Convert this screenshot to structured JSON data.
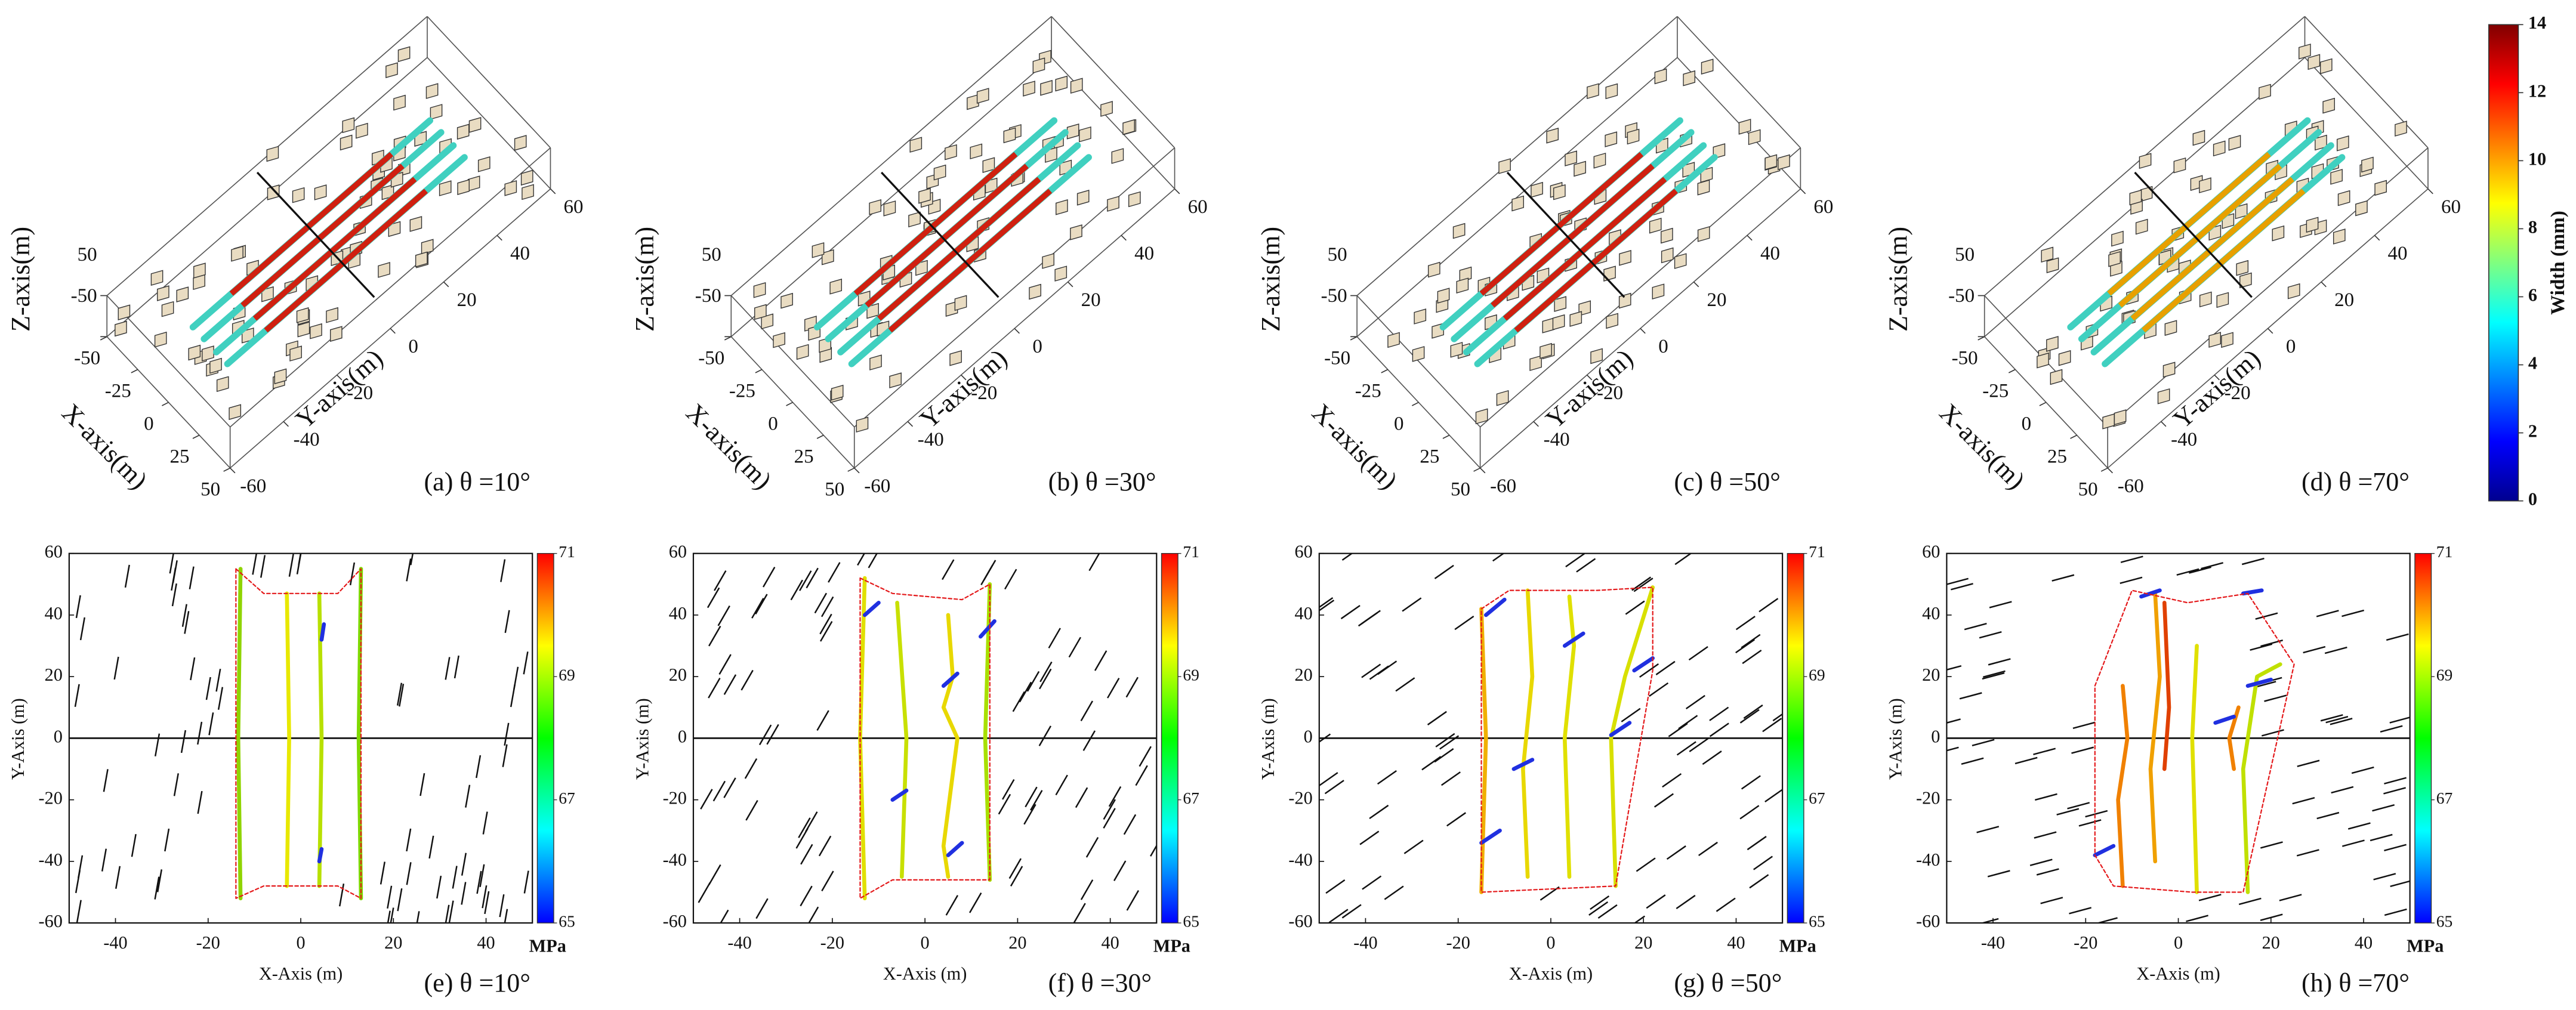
{
  "chart_data": [
    {
      "type": "3d",
      "title": "(a) θ =10°",
      "xlabel": "X-axis(m)",
      "ylabel": "Y-axis(m)",
      "zlabel": "Z-axis(m)",
      "xlim": [
        -50,
        50
      ],
      "ylim": [
        -60,
        60
      ],
      "zlim": [
        -50,
        50
      ],
      "xticks": [
        -50,
        -25,
        0,
        25,
        50
      ],
      "yticks": [
        -60,
        -40,
        -20,
        0,
        20,
        40,
        60
      ],
      "zticks": [
        -50,
        50
      ]
    },
    {
      "type": "3d",
      "title": "(b) θ =30°",
      "xlabel": "X-axis(m)",
      "ylabel": "Y-axis(m)",
      "zlabel": "Z-axis(m)",
      "xlim": [
        -50,
        50
      ],
      "ylim": [
        -60,
        60
      ],
      "zlim": [
        -50,
        50
      ],
      "xticks": [
        -50,
        -25,
        0,
        25,
        50
      ],
      "yticks": [
        -60,
        -40,
        -20,
        0,
        20,
        40,
        60
      ],
      "zticks": [
        -50,
        50
      ]
    },
    {
      "type": "3d",
      "title": "(c) θ =50°",
      "xlabel": "X-axis(m)",
      "ylabel": "Y-axis(m)",
      "zlabel": "Z-axis(m)",
      "xlim": [
        -50,
        50
      ],
      "ylim": [
        -60,
        60
      ],
      "zlim": [
        -50,
        50
      ],
      "xticks": [
        -50,
        -25,
        0,
        25,
        50
      ],
      "yticks": [
        -60,
        -40,
        -20,
        0,
        20,
        40,
        60
      ],
      "zticks": [
        -50,
        50
      ]
    },
    {
      "type": "3d",
      "title": "(d) θ =70°",
      "xlabel": "X-axis(m)",
      "ylabel": "Y-axis(m)",
      "zlabel": "Z-axis(m)",
      "xlim": [
        -50,
        50
      ],
      "ylim": [
        -60,
        60
      ],
      "zlim": [
        -50,
        50
      ],
      "xticks": [
        -50,
        -25,
        0,
        25,
        50
      ],
      "yticks": [
        -60,
        -40,
        -20,
        0,
        20,
        40,
        60
      ],
      "zticks": [
        -50,
        50
      ]
    },
    {
      "type": "line",
      "title": "(e) θ =10°",
      "xlabel": "X-Axis (m)",
      "ylabel": "Y-Axis (m)",
      "xlim": [
        -50,
        50
      ],
      "ylim": [
        -60,
        60
      ],
      "xticks": [
        -40,
        -20,
        0,
        20,
        40
      ],
      "yticks": [
        -60,
        -40,
        -20,
        0,
        20,
        40,
        60
      ],
      "colorbar": {
        "label": "MPa",
        "lim": [
          65,
          71
        ],
        "ticks": [
          65,
          67,
          69,
          71
        ]
      },
      "series": [
        {
          "color": "#8fd400",
          "x": [
            -13,
            -13.5,
            -13
          ],
          "values": [
            -52,
            0,
            55
          ]
        },
        {
          "color": "#e8e800",
          "x": [
            -3,
            -2.5,
            -3
          ],
          "values": [
            -48,
            0,
            47
          ]
        },
        {
          "color": "#b8e000",
          "x": [
            4,
            4.5,
            4
          ],
          "values": [
            -48,
            0,
            47
          ]
        },
        {
          "color": "#2030e0",
          "x": [
            4.5,
            5
          ],
          "values": [
            32,
            37
          ]
        },
        {
          "color": "#2030e0",
          "x": [
            4,
            4.5
          ],
          "values": [
            -40,
            -36
          ]
        },
        {
          "color": "#7fd800",
          "x": [
            13,
            12.5,
            13
          ],
          "values": [
            -52,
            0,
            55
          ]
        },
        {
          "color": "#e41a1c",
          "dash": true,
          "x": [
            -14,
            -8,
            8,
            13,
            13,
            8,
            -8,
            -14,
            -14
          ],
          "values": [
            55,
            47,
            47,
            55,
            -52,
            -48,
            -48,
            -52,
            55
          ]
        }
      ]
    },
    {
      "type": "line",
      "title": "(f) θ =30°",
      "xlabel": "X-Axis (m)",
      "ylabel": "Y-Axis (m)",
      "xlim": [
        -50,
        50
      ],
      "ylim": [
        -60,
        60
      ],
      "xticks": [
        -40,
        -20,
        0,
        20,
        40
      ],
      "yticks": [
        -60,
        -40,
        -20,
        0,
        20,
        40,
        60
      ],
      "colorbar": {
        "label": "MPa",
        "lim": [
          65,
          71
        ],
        "ticks": [
          65,
          67,
          69,
          71
        ]
      },
      "series": [
        {
          "color": "#e0e000",
          "x": [
            -13,
            -14,
            -13
          ],
          "values": [
            -52,
            0,
            52
          ]
        },
        {
          "color": "#2030e0",
          "x": [
            -13,
            -10
          ],
          "values": [
            40,
            44
          ]
        },
        {
          "color": "#c8e000",
          "x": [
            -5,
            -4,
            -6
          ],
          "values": [
            -45,
            0,
            44
          ]
        },
        {
          "color": "#2030e0",
          "x": [
            -7,
            -4
          ],
          "values": [
            -20,
            -17
          ]
        },
        {
          "color": "#e8d800",
          "x": [
            5,
            4,
            7,
            4,
            6,
            5
          ],
          "values": [
            -45,
            -35,
            0,
            10,
            20,
            40
          ]
        },
        {
          "color": "#2030e0",
          "x": [
            4,
            7
          ],
          "values": [
            17,
            21
          ]
        },
        {
          "color": "#2030e0",
          "x": [
            5,
            8
          ],
          "values": [
            -38,
            -34
          ]
        },
        {
          "color": "#a8e000",
          "x": [
            14,
            13,
            14
          ],
          "values": [
            -46,
            0,
            50
          ]
        },
        {
          "color": "#2030e0",
          "x": [
            12,
            15
          ],
          "values": [
            33,
            38
          ]
        },
        {
          "color": "#e41a1c",
          "dash": true,
          "x": [
            -14,
            -7,
            8,
            14,
            14,
            8,
            -7,
            -14,
            -14
          ],
          "values": [
            52,
            47,
            45,
            50,
            -46,
            -46,
            -46,
            -52,
            52
          ]
        }
      ]
    },
    {
      "type": "line",
      "title": "(g) θ =50°",
      "xlabel": "X-Axis (m)",
      "ylabel": "Y-Axis (m)",
      "xlim": [
        -50,
        50
      ],
      "ylim": [
        -60,
        60
      ],
      "xticks": [
        -40,
        -20,
        0,
        20,
        40
      ],
      "yticks": [
        -60,
        -40,
        -20,
        0,
        20,
        40,
        60
      ],
      "colorbar": {
        "label": "MPa",
        "lim": [
          65,
          71
        ],
        "ticks": [
          65,
          67,
          69,
          71
        ]
      },
      "series": [
        {
          "color": "#f0b000",
          "x": [
            -15,
            -14,
            -15
          ],
          "values": [
            -50,
            0,
            42
          ]
        },
        {
          "color": "#2030e0",
          "x": [
            -15,
            -11
          ],
          "values": [
            -34,
            -30
          ]
        },
        {
          "color": "#2030e0",
          "x": [
            -14,
            -10
          ],
          "values": [
            40,
            45
          ]
        },
        {
          "color": "#e8d800",
          "x": [
            -5,
            -6,
            -4,
            -5
          ],
          "values": [
            -45,
            -10,
            20,
            48
          ]
        },
        {
          "color": "#2030e0",
          "x": [
            -8,
            -4
          ],
          "values": [
            -10,
            -7
          ]
        },
        {
          "color": "#e0e000",
          "x": [
            4,
            3,
            5,
            4
          ],
          "values": [
            -45,
            0,
            30,
            46
          ]
        },
        {
          "color": "#2030e0",
          "x": [
            3,
            7
          ],
          "values": [
            30,
            34
          ]
        },
        {
          "color": "#d8e000",
          "x": [
            14,
            13,
            16,
            22
          ],
          "values": [
            -48,
            0,
            20,
            49
          ]
        },
        {
          "color": "#2030e0",
          "x": [
            13,
            17
          ],
          "values": [
            1,
            5
          ]
        },
        {
          "color": "#2030e0",
          "x": [
            18,
            22
          ],
          "values": [
            22,
            26
          ]
        },
        {
          "color": "#e41a1c",
          "dash": true,
          "x": [
            -15,
            -9,
            10,
            22,
            22,
            14,
            -15,
            -15
          ],
          "values": [
            42,
            48,
            48,
            49,
            22,
            -48,
            -50,
            42
          ]
        }
      ]
    },
    {
      "type": "line",
      "title": "(h) θ =70°",
      "xlabel": "X-Axis (m)",
      "ylabel": "Y-Axis (m)",
      "xlim": [
        -50,
        50
      ],
      "ylim": [
        -60,
        60
      ],
      "xticks": [
        -40,
        -20,
        0,
        20,
        40
      ],
      "yticks": [
        -60,
        -40,
        -20,
        0,
        20,
        40,
        60
      ],
      "colorbar": {
        "label": "MPa",
        "lim": [
          65,
          71
        ],
        "ticks": [
          65,
          67,
          69,
          71
        ]
      },
      "series": [
        {
          "color": "#f08000",
          "x": [
            -12,
            -13,
            -11,
            -12
          ],
          "values": [
            -48,
            -20,
            0,
            17
          ]
        },
        {
          "color": "#f0a000",
          "x": [
            -5,
            -6,
            -4,
            -5
          ],
          "values": [
            -40,
            -10,
            20,
            47
          ]
        },
        {
          "color": "#e04000",
          "x": [
            -3,
            -2,
            -3
          ],
          "values": [
            -10,
            10,
            44
          ]
        },
        {
          "color": "#f08000",
          "x": [
            12,
            11,
            13
          ],
          "values": [
            -10,
            0,
            10
          ]
        },
        {
          "color": "#e0e000",
          "x": [
            4,
            3,
            4
          ],
          "values": [
            -50,
            0,
            30
          ]
        },
        {
          "color": "#c0e000",
          "x": [
            15,
            14,
            17,
            22
          ],
          "values": [
            -50,
            -10,
            20,
            24
          ]
        },
        {
          "color": "#2030e0",
          "x": [
            -18,
            -14
          ],
          "values": [
            -38,
            -35
          ]
        },
        {
          "color": "#2030e0",
          "x": [
            -8,
            -4
          ],
          "values": [
            46,
            48
          ]
        },
        {
          "color": "#2030e0",
          "x": [
            14,
            18
          ],
          "values": [
            47,
            48
          ]
        },
        {
          "color": "#2030e0",
          "x": [
            8,
            12
          ],
          "values": [
            5,
            7
          ]
        },
        {
          "color": "#2030e0",
          "x": [
            15,
            20
          ],
          "values": [
            17,
            19
          ]
        },
        {
          "color": "#e41a1c",
          "dash": true,
          "x": [
            -18,
            -10,
            2,
            15,
            25,
            14,
            3,
            -14,
            -18,
            -18
          ],
          "values": [
            17,
            48,
            44,
            47,
            24,
            -50,
            -50,
            -48,
            -38,
            17
          ]
        }
      ]
    }
  ],
  "colorbar": {
    "label": "Width (mm)",
    "lim": [
      0,
      14
    ],
    "ticks": [
      0,
      2,
      4,
      6,
      8,
      10,
      12,
      14
    ]
  }
}
